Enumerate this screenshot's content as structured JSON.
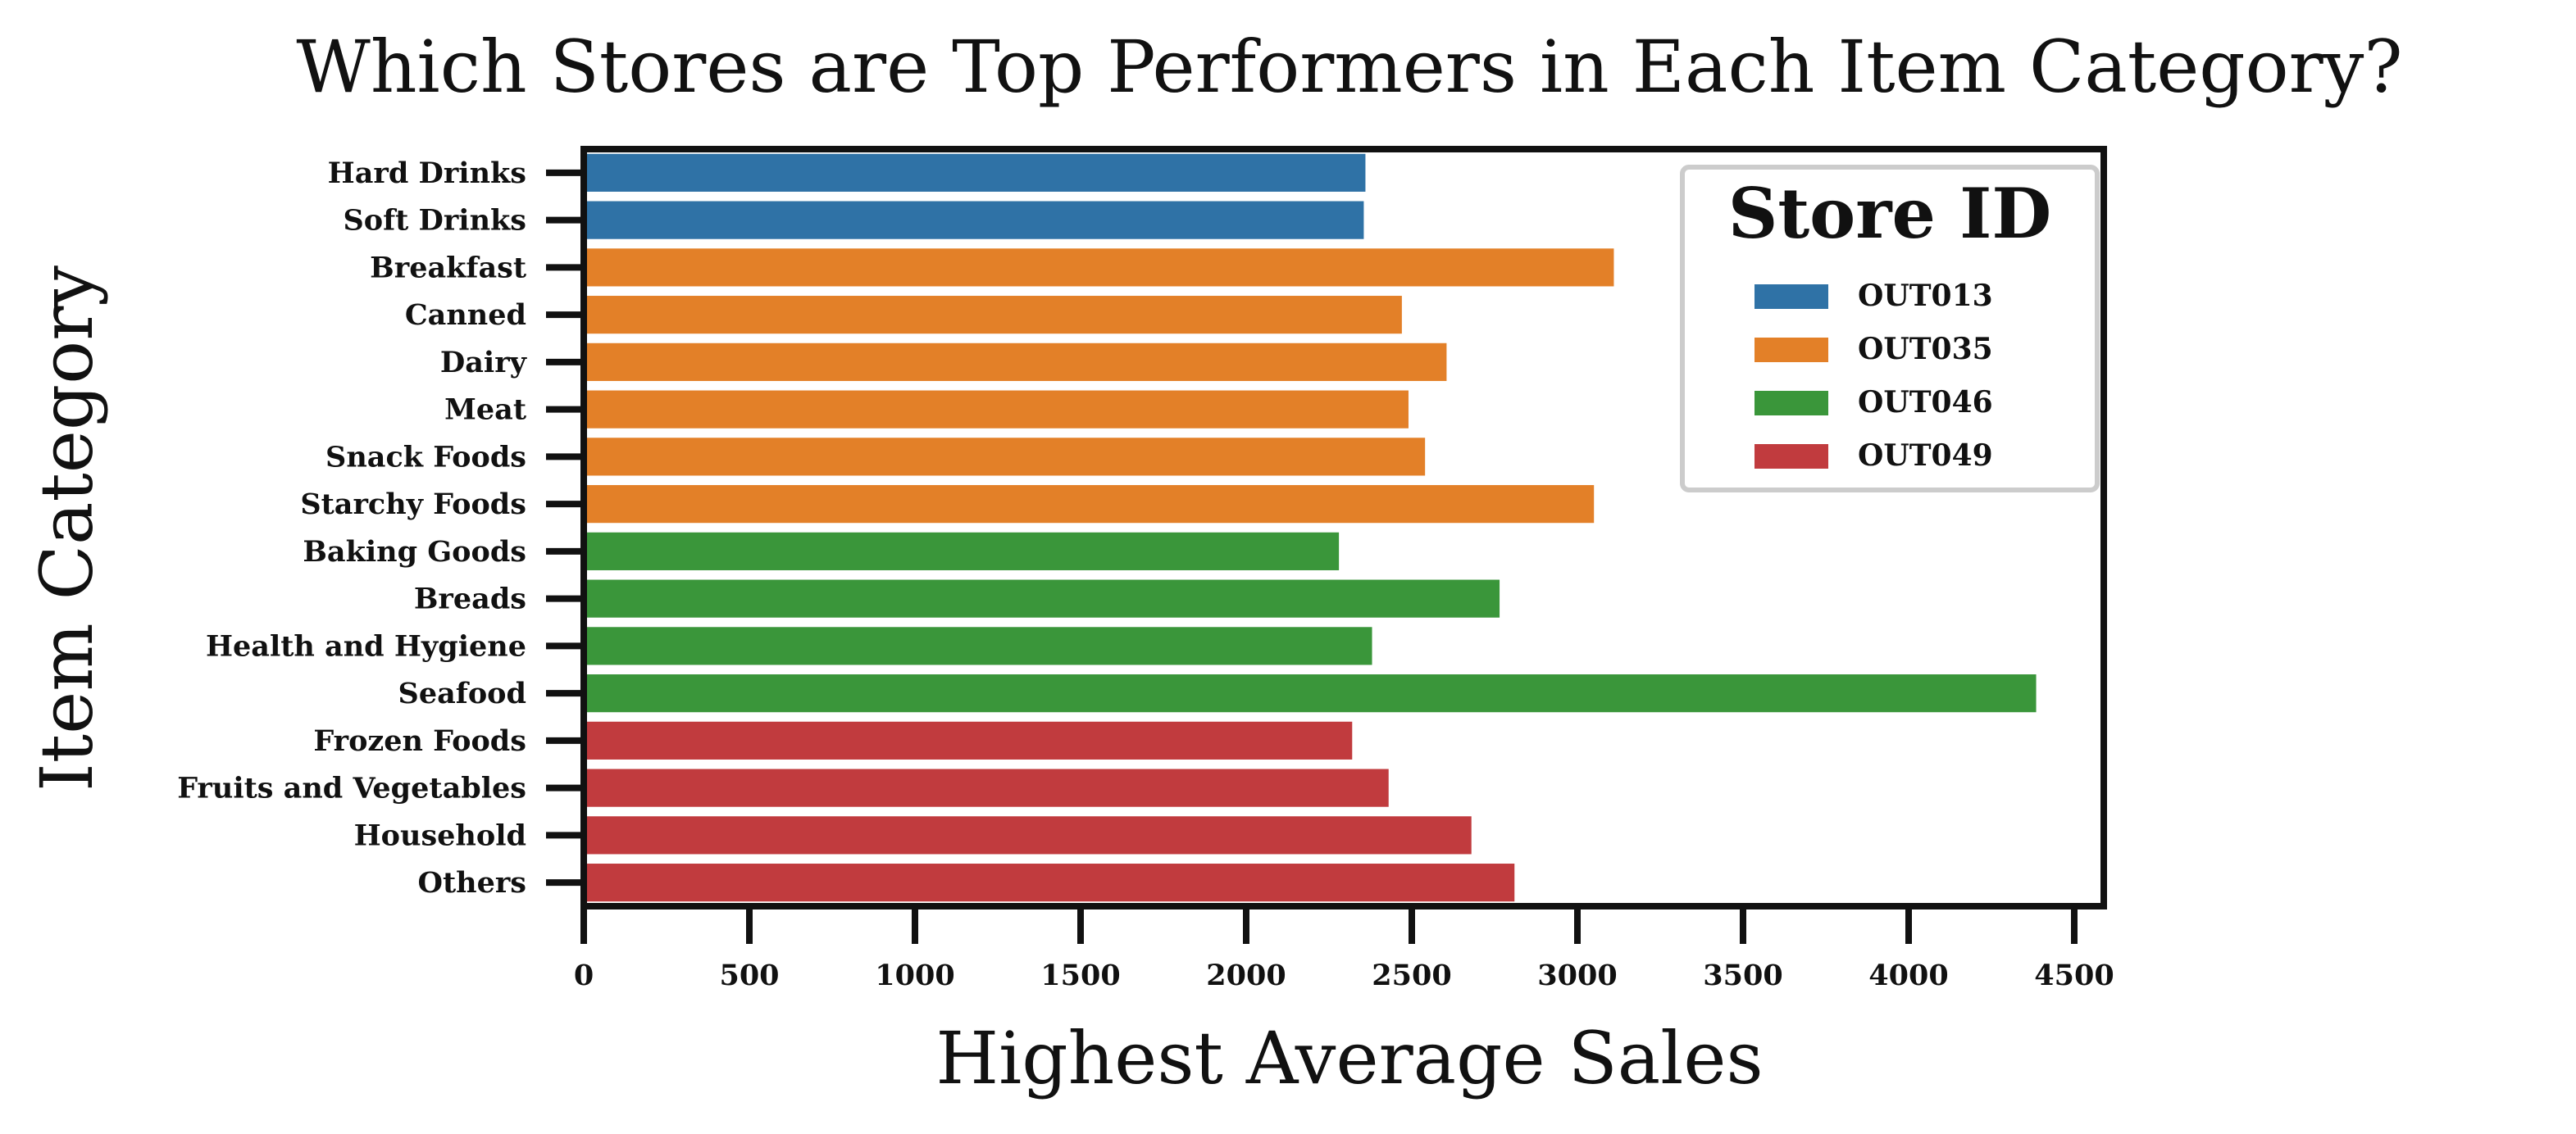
{
  "chart_data": {
    "type": "bar",
    "orientation": "horizontal",
    "title": "Which Stores are Top Performers in Each Item Category?",
    "xlabel": "Highest Average Sales",
    "ylabel": "Item Category",
    "xlim": [
      0,
      4600
    ],
    "x_ticks": [
      "0",
      "500",
      "1000",
      "1500",
      "2000",
      "2500",
      "3000",
      "3500",
      "4000",
      "4500"
    ],
    "grid": false,
    "legend": {
      "title": "Store ID",
      "placement": "top-right",
      "entries": [
        {
          "label": "OUT013",
          "color": "#2f72a6"
        },
        {
          "label": "OUT035",
          "color": "#e38028"
        },
        {
          "label": "OUT046",
          "color": "#3a963a"
        },
        {
          "label": "OUT049",
          "color": "#c13b3e"
        }
      ]
    },
    "bars": [
      {
        "category": "Hard Drinks",
        "value": 2360,
        "store": "OUT013"
      },
      {
        "category": "Soft Drinks",
        "value": 2355,
        "store": "OUT013"
      },
      {
        "category": "Breakfast",
        "value": 3110,
        "store": "OUT035"
      },
      {
        "category": "Canned",
        "value": 2470,
        "store": "OUT035"
      },
      {
        "category": "Dairy",
        "value": 2605,
        "store": "OUT035"
      },
      {
        "category": "Meat",
        "value": 2490,
        "store": "OUT035"
      },
      {
        "category": "Snack Foods",
        "value": 2540,
        "store": "OUT035"
      },
      {
        "category": "Starchy Foods",
        "value": 3050,
        "store": "OUT035"
      },
      {
        "category": "Baking Goods",
        "value": 2280,
        "store": "OUT046"
      },
      {
        "category": "Breads",
        "value": 2765,
        "store": "OUT046"
      },
      {
        "category": "Health and Hygiene",
        "value": 2380,
        "store": "OUT046"
      },
      {
        "category": "Seafood",
        "value": 4385,
        "store": "OUT046"
      },
      {
        "category": "Frozen Foods",
        "value": 2320,
        "store": "OUT049"
      },
      {
        "category": "Fruits and Vegetables",
        "value": 2430,
        "store": "OUT049"
      },
      {
        "category": "Household",
        "value": 2680,
        "store": "OUT049"
      },
      {
        "category": "Others",
        "value": 2810,
        "store": "OUT049"
      }
    ]
  }
}
